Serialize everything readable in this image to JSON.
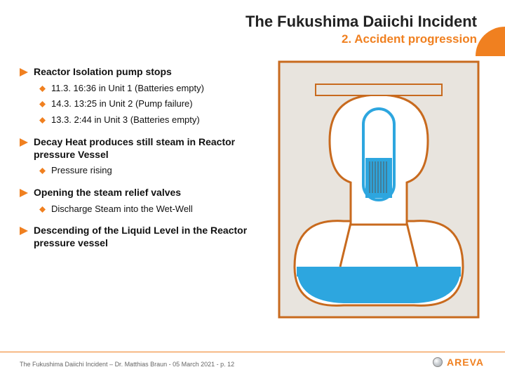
{
  "title": "The Fukushima Daiichi Incident",
  "subtitle": "2. Accident progression",
  "bullets": [
    {
      "text": "Reactor Isolation pump stops",
      "subs": [
        "11.3. 16:36 in Unit 1 (Batteries empty)",
        "14.3. 13:25 in Unit 2 (Pump failure)",
        "13.3. 2:44 in Unit 3 (Batteries empty)"
      ]
    },
    {
      "text": "Decay Heat produces still steam in Reactor pressure Vessel",
      "subs": [
        "Pressure rising"
      ]
    },
    {
      "text": "Opening the steam relief valves",
      "subs": [
        "Discharge Steam into the Wet-Well"
      ]
    },
    {
      "text": "Descending of the Liquid Level in the Reactor pressure vessel",
      "subs": []
    }
  ],
  "footer": "The Fukushima Daiichi Incident – Dr. Matthias Braun - 05 March 2021 - p. 12",
  "brand": "AREVA",
  "colors": {
    "accent": "#f08020",
    "water": "#2da6df",
    "outline": "#c86a1e",
    "vessel_fill": "#ffffff",
    "containment_bg": "#e8e4de",
    "hatch": "#555555"
  },
  "diagram": {
    "type": "schematic",
    "description": "BWR containment cross-section with RPV, drywell, wet-well torus, water levels"
  }
}
